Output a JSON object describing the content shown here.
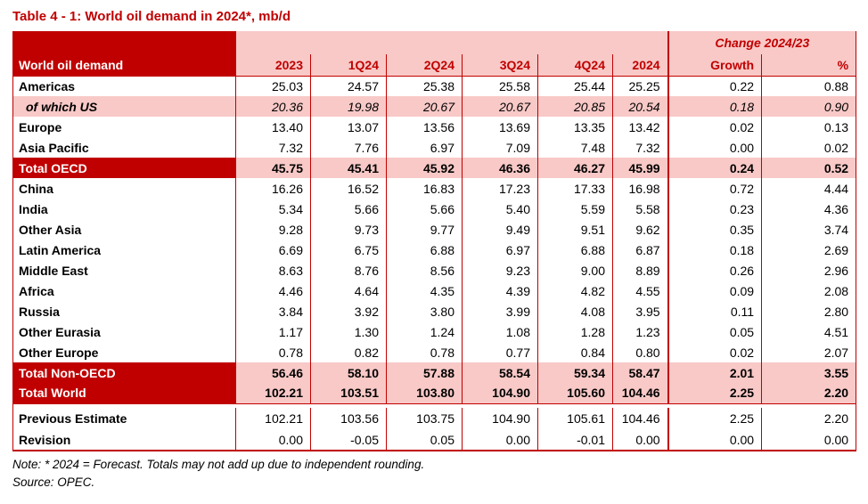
{
  "title": "Table 4 - 1: World oil demand in 2024*, mb/d",
  "colors": {
    "dark_red": "#C00000",
    "pink": "#F8C9C7",
    "header_text_red": "#C00000"
  },
  "table": {
    "corner_label": "World oil demand",
    "change_header": "Change 2024/23",
    "columns": [
      "2023",
      "1Q24",
      "2Q24",
      "3Q24",
      "4Q24",
      "2024",
      "Growth",
      "%"
    ],
    "rows": [
      {
        "label": "Americas",
        "style": "normal",
        "values": [
          "25.03",
          "24.57",
          "25.38",
          "25.58",
          "25.44",
          "25.25",
          "0.22",
          "0.88"
        ]
      },
      {
        "label": "of which US",
        "style": "sub",
        "values": [
          "20.36",
          "19.98",
          "20.67",
          "20.67",
          "20.85",
          "20.54",
          "0.18",
          "0.90"
        ]
      },
      {
        "label": "Europe",
        "style": "normal",
        "values": [
          "13.40",
          "13.07",
          "13.56",
          "13.69",
          "13.35",
          "13.42",
          "0.02",
          "0.13"
        ]
      },
      {
        "label": "Asia Pacific",
        "style": "normal",
        "values": [
          "7.32",
          "7.76",
          "6.97",
          "7.09",
          "7.48",
          "7.32",
          "0.00",
          "0.02"
        ]
      },
      {
        "label": "Total OECD",
        "style": "total",
        "values": [
          "45.75",
          "45.41",
          "45.92",
          "46.36",
          "46.27",
          "45.99",
          "0.24",
          "0.52"
        ]
      },
      {
        "label": "China",
        "style": "normal",
        "values": [
          "16.26",
          "16.52",
          "16.83",
          "17.23",
          "17.33",
          "16.98",
          "0.72",
          "4.44"
        ]
      },
      {
        "label": "India",
        "style": "normal",
        "values": [
          "5.34",
          "5.66",
          "5.66",
          "5.40",
          "5.59",
          "5.58",
          "0.23",
          "4.36"
        ]
      },
      {
        "label": "Other Asia",
        "style": "normal",
        "values": [
          "9.28",
          "9.73",
          "9.77",
          "9.49",
          "9.51",
          "9.62",
          "0.35",
          "3.74"
        ]
      },
      {
        "label": "Latin America",
        "style": "normal",
        "values": [
          "6.69",
          "6.75",
          "6.88",
          "6.97",
          "6.88",
          "6.87",
          "0.18",
          "2.69"
        ]
      },
      {
        "label": "Middle East",
        "style": "normal",
        "values": [
          "8.63",
          "8.76",
          "8.56",
          "9.23",
          "9.00",
          "8.89",
          "0.26",
          "2.96"
        ]
      },
      {
        "label": "Africa",
        "style": "normal",
        "values": [
          "4.46",
          "4.64",
          "4.35",
          "4.39",
          "4.82",
          "4.55",
          "0.09",
          "2.08"
        ]
      },
      {
        "label": "Russia",
        "style": "normal",
        "values": [
          "3.84",
          "3.92",
          "3.80",
          "3.99",
          "4.08",
          "3.95",
          "0.11",
          "2.80"
        ]
      },
      {
        "label": "Other Eurasia",
        "style": "normal",
        "values": [
          "1.17",
          "1.30",
          "1.24",
          "1.08",
          "1.28",
          "1.23",
          "0.05",
          "4.51"
        ]
      },
      {
        "label": "Other Europe",
        "style": "normal",
        "values": [
          "0.78",
          "0.82",
          "0.78",
          "0.77",
          "0.84",
          "0.80",
          "0.02",
          "2.07"
        ]
      },
      {
        "label": "Total Non-OECD",
        "style": "total",
        "values": [
          "56.46",
          "58.10",
          "57.88",
          "58.54",
          "59.34",
          "58.47",
          "2.01",
          "3.55"
        ]
      },
      {
        "label": "Total World",
        "style": "total",
        "values": [
          "102.21",
          "103.51",
          "103.80",
          "104.90",
          "105.60",
          "104.46",
          "2.25",
          "2.20"
        ],
        "spacer_after": true
      },
      {
        "label": "Previous Estimate",
        "style": "estimate",
        "values": [
          "102.21",
          "103.56",
          "103.75",
          "104.90",
          "105.61",
          "104.46",
          "2.25",
          "2.20"
        ]
      },
      {
        "label": "Revision",
        "style": "estimate",
        "values": [
          "0.00",
          "-0.05",
          "0.05",
          "0.00",
          "-0.01",
          "0.00",
          "0.00",
          "0.00"
        ]
      }
    ]
  },
  "notes": {
    "note": "Note: * 2024 = Forecast. Totals may not add up due to independent rounding.",
    "source": "Source: OPEC."
  }
}
